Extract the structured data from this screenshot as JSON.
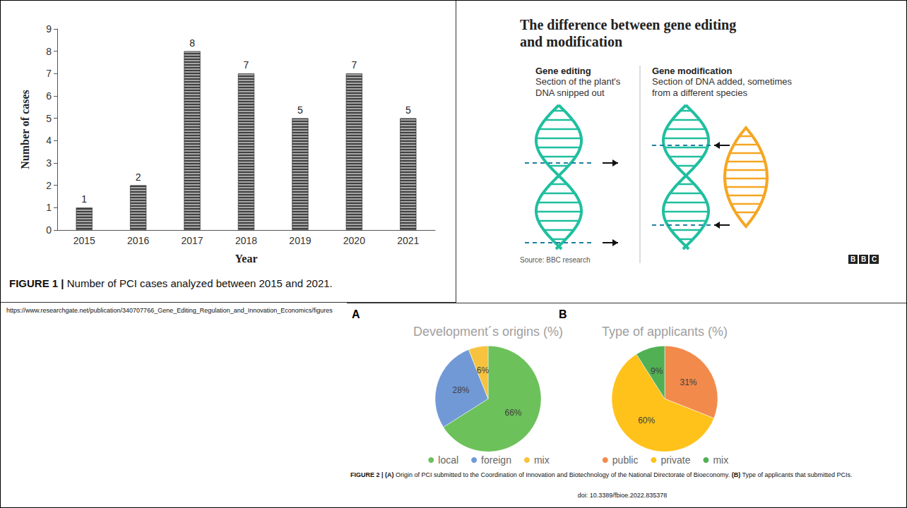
{
  "chart_data": [
    {
      "type": "bar",
      "x_label": "Year",
      "y_label": "Number of cases",
      "categories": [
        "2015",
        "2016",
        "2017",
        "2018",
        "2019",
        "2020",
        "2021"
      ],
      "values": [
        1,
        2,
        8,
        7,
        5,
        7,
        5
      ],
      "color": "#a6a6a6",
      "ylim": [
        0,
        9
      ],
      "yticks": [
        0,
        1,
        2,
        3,
        4,
        5,
        6,
        7,
        8,
        9
      ],
      "grid": false,
      "data_labels": true
    },
    {
      "type": "pie",
      "panel": "A",
      "title": "Development´s origins (%)",
      "categories": [
        "local",
        "foreign",
        "mix"
      ],
      "values": [
        66,
        28,
        6
      ],
      "value_labels": [
        "66%",
        "28%",
        "6%"
      ],
      "colors": [
        "#6cc15a",
        "#7199d6",
        "#f7c23d"
      ],
      "legend": "bottom",
      "data_labels": true
    },
    {
      "type": "pie",
      "panel": "B",
      "title": "Type of applicants (%)",
      "categories": [
        "public",
        "private",
        "mix"
      ],
      "values": [
        31,
        60,
        9
      ],
      "value_labels": [
        "31%",
        "60%",
        "9%"
      ],
      "colors": [
        "#f28a4b",
        "#ffc21a",
        "#52b054"
      ],
      "legend": "bottom",
      "data_labels": true
    }
  ],
  "figure_1_caption": {
    "label": "FIGURE 1 |",
    "text": "Number of PCI cases analyzed between 2015 and 2021."
  },
  "source_url": "https://www.researchgate.net/publication/340707766_Gene_Editing_Regulation_and_Innovation_Economics/figures",
  "diagram": {
    "title": "The difference between gene editing and modification",
    "left": {
      "heading": "Gene editing",
      "text": "Section of the plant's DNA snipped out"
    },
    "right": {
      "heading": "Gene modification",
      "text": "Section of DNA added, sometimes from a different species"
    },
    "source": "Source: BBC research",
    "brand": "BBC"
  },
  "figure_2_caption": {
    "label": "FIGURE 2 |",
    "parts": [
      {
        "label": "(A)",
        "text": "Origin of PCI submitted to the Coordination of Innovation and Biotechnology of the National Directorate of Bioeconomy."
      },
      {
        "label": "(B)",
        "text": "Type of applicants that submitted PCIs."
      }
    ]
  },
  "doi": "doi: 10.3389/fbioe.2022.835378"
}
